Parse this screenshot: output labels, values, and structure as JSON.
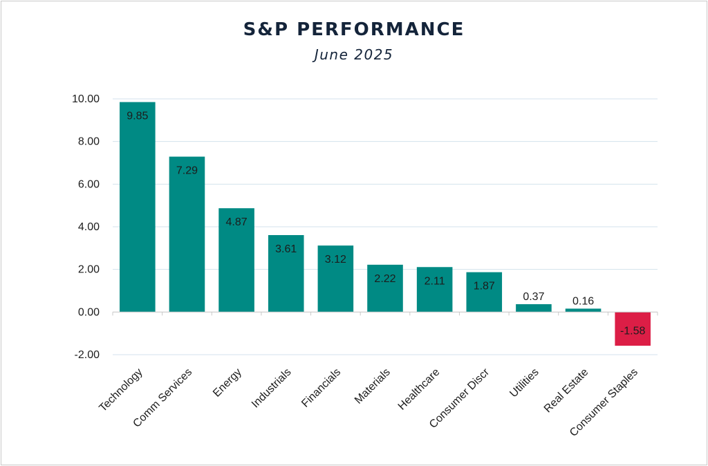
{
  "chart_data": {
    "type": "bar",
    "title": "S&P PERFORMANCE",
    "subtitle": "June 2025",
    "xlabel": "",
    "ylabel": "",
    "categories": [
      "Technology",
      "Comm Services",
      "Energy",
      "Industrials",
      "Financials",
      "Materials",
      "Healthcare",
      "Consumer Discr",
      "Utilities",
      "Real Estate",
      "Consumer Staples"
    ],
    "values": [
      9.85,
      7.29,
      4.87,
      3.61,
      3.12,
      2.22,
      2.11,
      1.87,
      0.37,
      0.16,
      -1.58
    ],
    "value_labels": [
      "9.85",
      "7.29",
      "4.87",
      "3.61",
      "3.12",
      "2.22",
      "2.11",
      "1.87",
      "0.37",
      "0.16",
      "-1.58"
    ],
    "ylim": [
      -2,
      10
    ],
    "yticks": [
      10,
      8,
      6,
      4,
      2,
      0,
      -2
    ],
    "ytick_labels": [
      "10.00",
      "8.00",
      "6.00",
      "4.00",
      "2.00",
      "0.00",
      "-2.00"
    ],
    "grid": true,
    "legend": "none",
    "colors": {
      "positive": "#008a84",
      "negative": "#dc1e46",
      "grid": "#d3e2ec",
      "axis": "#c9c9c9"
    }
  }
}
